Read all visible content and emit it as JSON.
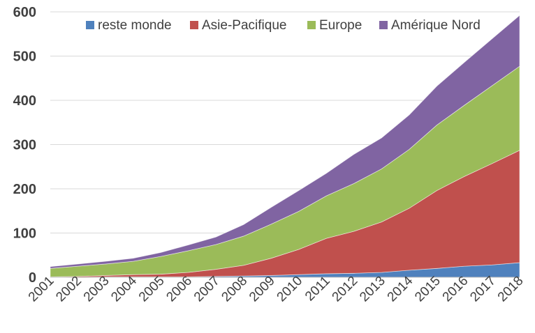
{
  "chart_data": {
    "type": "area",
    "stacked": true,
    "title": "",
    "xlabel": "",
    "ylabel": "",
    "ylim": [
      0,
      600
    ],
    "yticks": [
      0,
      100,
      200,
      300,
      400,
      500,
      600
    ],
    "grid": "horizontal",
    "legend_position": "top",
    "categories": [
      "2001",
      "2002",
      "2003",
      "2004",
      "2005",
      "2006",
      "2007",
      "2008",
      "2009",
      "2010",
      "2011",
      "2012",
      "2013",
      "2014",
      "2015",
      "2016",
      "2017",
      "2018"
    ],
    "series": [
      {
        "name": "reste monde",
        "color": "#4f81bd",
        "values": [
          0,
          0,
          1,
          1,
          1,
          1,
          2,
          3,
          4,
          6,
          8,
          9,
          11,
          16,
          20,
          25,
          28,
          33
        ]
      },
      {
        "name": "Asie-Pacifique",
        "color": "#c0504d",
        "values": [
          1,
          2,
          3,
          5,
          6,
          10,
          16,
          24,
          39,
          57,
          80,
          95,
          114,
          140,
          176,
          203,
          229,
          254
        ]
      },
      {
        "name": "Europe",
        "color": "#9bbb59",
        "values": [
          19,
          23,
          26,
          30,
          40,
          49,
          56,
          66,
          77,
          86,
          96,
          108,
          120,
          133,
          148,
          161,
          176,
          190
        ]
      },
      {
        "name": "Amérique Nord",
        "color": "#8064a2",
        "values": [
          4,
          5,
          6,
          7,
          9,
          13,
          17,
          26,
          38,
          47,
          51,
          66,
          70,
          78,
          88,
          97,
          106,
          115
        ]
      }
    ]
  }
}
